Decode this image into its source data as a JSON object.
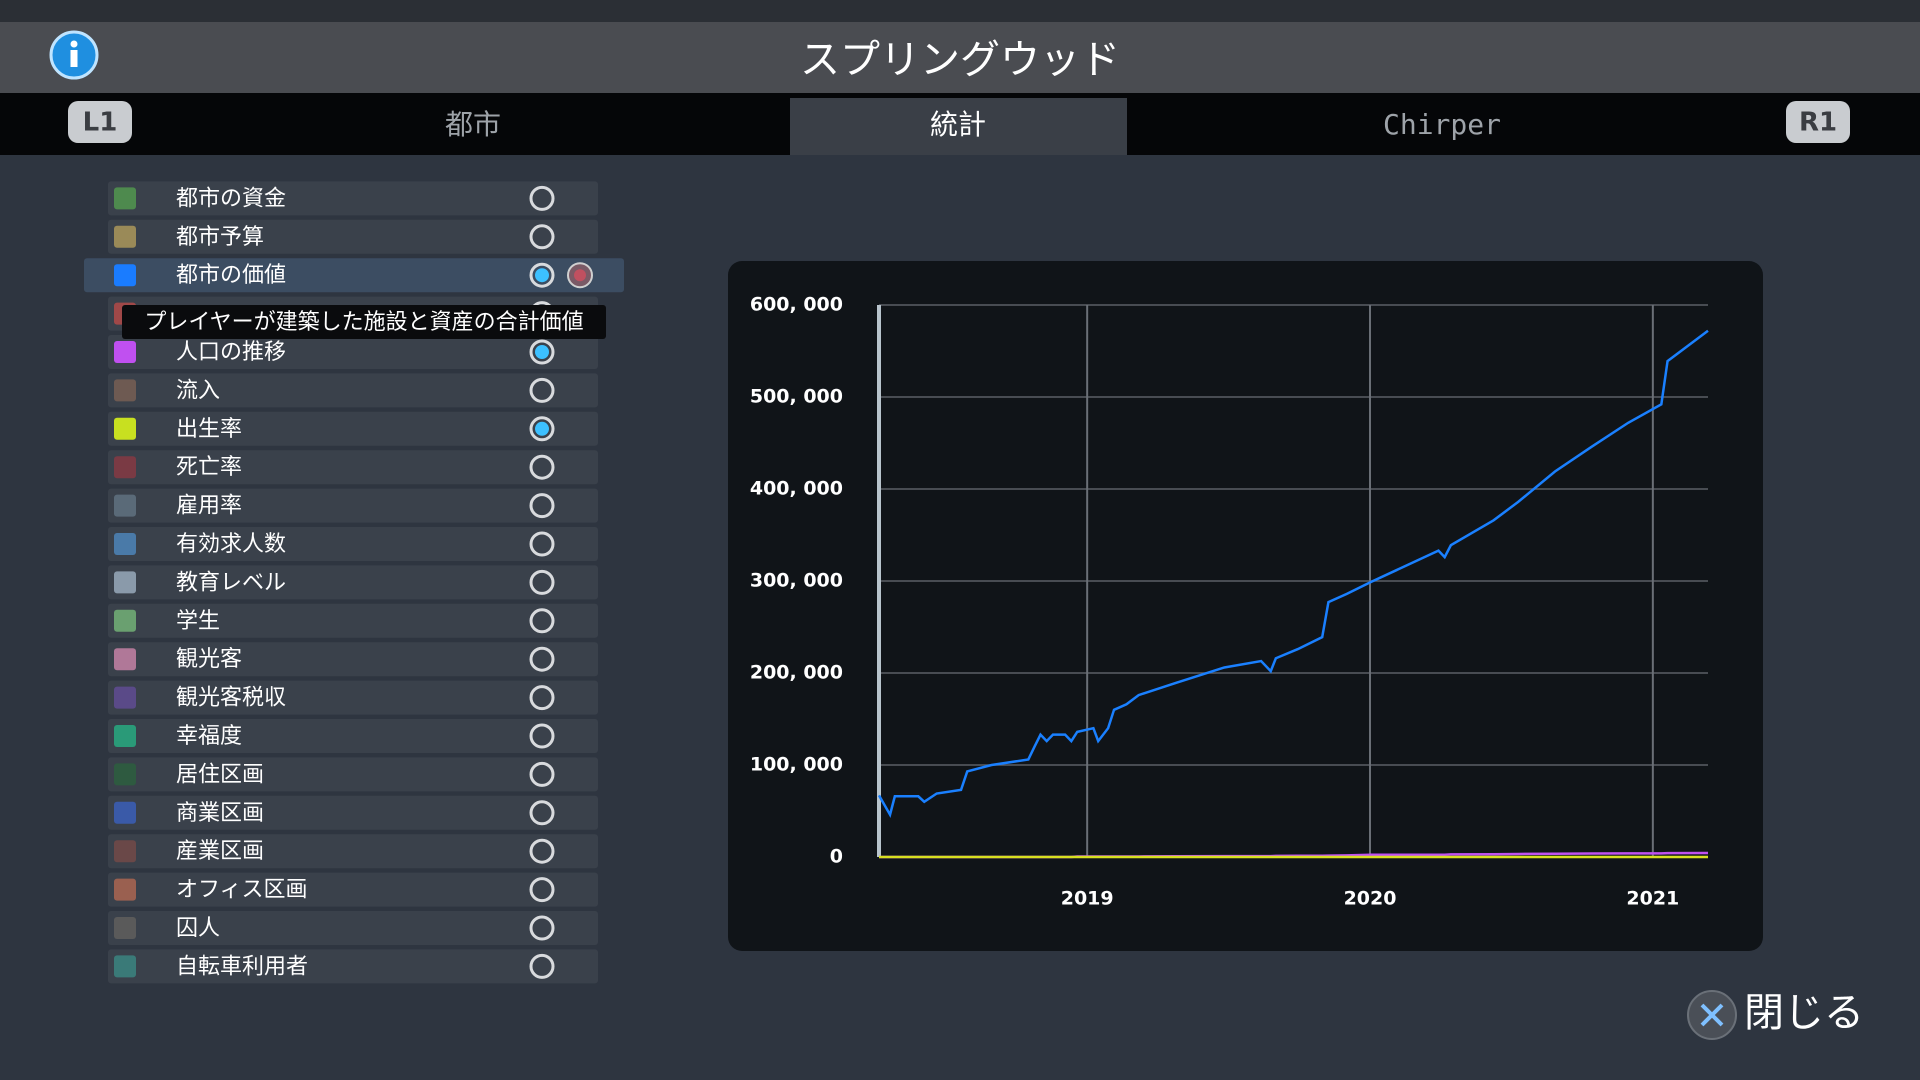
{
  "header": {
    "title": "スプリングウッド"
  },
  "tabs": {
    "left_button": "L1",
    "right_button": "R1",
    "items": [
      "都市",
      "統計",
      "Chirper"
    ]
  },
  "sidebar": {
    "items": [
      {
        "label": "都市の資金",
        "color": "#4e8a4e",
        "active": false
      },
      {
        "label": "都市予算",
        "color": "#9a8a58",
        "active": false
      },
      {
        "label": "都市の価値",
        "color": "#1a7cff",
        "active": true
      },
      {
        "color": "#a04848",
        "active": false
      },
      {
        "label": "人口の推移",
        "color": "#c050f0",
        "active": true
      },
      {
        "label": "流入",
        "color": "#6e5a52",
        "active": false
      },
      {
        "label": "出生率",
        "color": "#c8e020",
        "active": true
      },
      {
        "label": "死亡率",
        "color": "#7a3a44",
        "active": false
      },
      {
        "label": "雇用率",
        "color": "#5a6a78",
        "active": false
      },
      {
        "label": "有効求人数",
        "color": "#4a7aa8",
        "active": false
      },
      {
        "label": "教育レベル",
        "color": "#8a9aaa",
        "active": false
      },
      {
        "label": "学生",
        "color": "#6aa070",
        "active": false
      },
      {
        "label": "観光客",
        "color": "#b07898",
        "active": false
      },
      {
        "label": "観光客税収",
        "color": "#5a4a88",
        "active": false
      },
      {
        "label": "幸福度",
        "color": "#2a9a78",
        "active": false
      },
      {
        "label": "居住区画",
        "color": "#2e5a40",
        "active": false
      },
      {
        "label": "商業区画",
        "color": "#3a5aa8",
        "active": false
      },
      {
        "label": "産業区画",
        "color": "#6a4848",
        "active": false
      },
      {
        "label": "オフィス区画",
        "color": "#9a6050",
        "active": false
      },
      {
        "label": "囚人",
        "color": "#5a5a5a",
        "active": false
      },
      {
        "label": "自転車利用者",
        "color": "#3a7a78",
        "active": false
      }
    ]
  },
  "tooltip": "プレイヤーが建築した施設と資産の合計価値",
  "close_button": "閉じる",
  "chart_data": {
    "type": "line",
    "x": [
      2018.264,
      2018.303,
      2018.32,
      2018.403,
      2018.424,
      2018.468,
      2018.554,
      2018.576,
      2018.662,
      2018.792,
      2018.814,
      2018.835,
      2018.857,
      2018.879,
      2018.922,
      2018.944,
      2018.965,
      2019.022,
      2019.039,
      2019.074,
      2019.095,
      2019.139,
      2019.182,
      2019.312,
      2019.485,
      2019.615,
      2019.649,
      2019.667,
      2019.745,
      2019.831,
      2019.853,
      2019.918,
      2020.004,
      2020.242,
      2020.264,
      2020.286,
      2020.437,
      2020.524,
      2020.654,
      2020.784,
      2020.913,
      2021.03,
      2021.052,
      2021.195
    ],
    "series": [
      {
        "color": "#1a80ff",
        "values": [
          67000,
          46000,
          66000,
          66000,
          60000,
          69000,
          73000,
          93000,
          100000,
          106000,
          120000,
          133000,
          126000,
          133000,
          133000,
          126000,
          136000,
          140000,
          126000,
          140000,
          160000,
          166000,
          176000,
          189000,
          206000,
          213000,
          202000,
          216000,
          226000,
          239000,
          277000,
          286000,
          299000,
          333000,
          326000,
          339000,
          366000,
          386000,
          419000,
          446000,
          472000,
          492000,
          539000,
          572000
        ]
      },
      {
        "color": "#c050f0",
        "values": [
          0,
          0,
          0,
          0,
          0,
          0,
          0,
          0,
          0,
          0,
          0,
          0,
          0,
          0,
          0,
          0,
          500,
          500,
          500,
          500,
          500,
          500,
          600,
          800,
          1000,
          1000,
          1000,
          1200,
          1300,
          1400,
          1500,
          1800,
          2400,
          2400,
          2500,
          2800,
          3000,
          3300,
          3600,
          3800,
          4000,
          4000,
          4200,
          4300
        ]
      },
      {
        "color": "#d8e020",
        "values": [
          0,
          0,
          0,
          0,
          0,
          0,
          0,
          0,
          0,
          0,
          0,
          0,
          0,
          0,
          0,
          0,
          0,
          0,
          0,
          0,
          0,
          0,
          0,
          0,
          0,
          0,
          0,
          0,
          0,
          0,
          0,
          0,
          0,
          0,
          0,
          0,
          0,
          0,
          0,
          0,
          0,
          0,
          0,
          0
        ]
      }
    ],
    "xlim": [
      2018.264,
      2021.195
    ],
    "xticks": [
      2019,
      2020,
      2021
    ],
    "ylim": [
      0,
      600000
    ],
    "yticks": [
      0,
      {
        "value": 100000,
        "label": "100, 000"
      },
      {
        "value": 200000,
        "label": "200, 000"
      },
      {
        "value": 300000,
        "label": "300, 000"
      },
      {
        "value": 400000,
        "label": "400, 000"
      },
      {
        "value": 500000,
        "label": "500, 000"
      },
      {
        "value": 600000,
        "label": "600, 000"
      }
    ],
    "grid": true
  }
}
